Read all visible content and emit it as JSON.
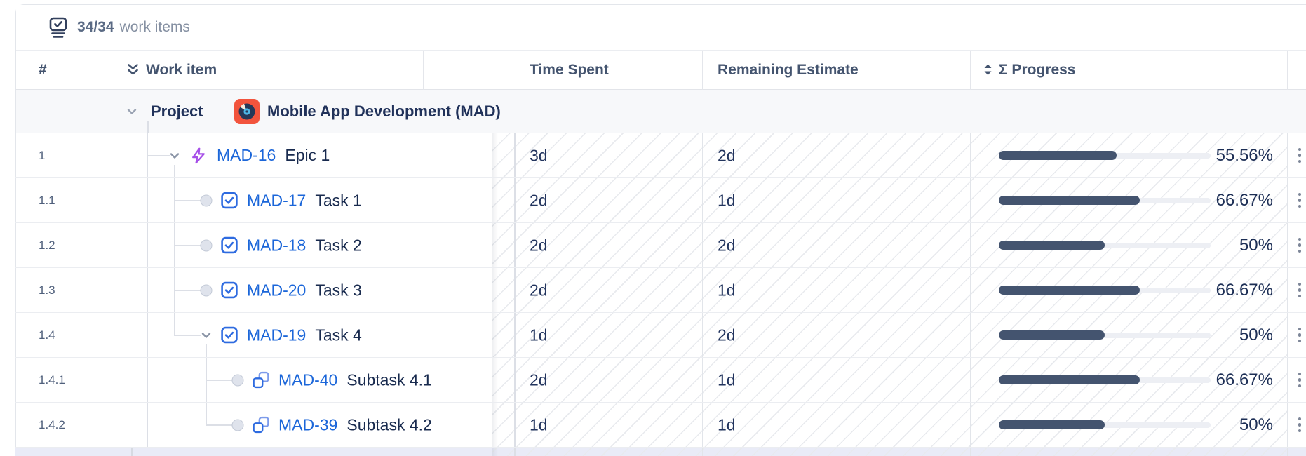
{
  "topbar": {
    "count": "34/34",
    "label": "work items"
  },
  "header": {
    "number": "#",
    "work_item": "Work item",
    "time_spent": "Time Spent",
    "remaining_estimate": "Remaining Estimate",
    "progress": "Σ Progress"
  },
  "project": {
    "label": "Project",
    "name": "Mobile App Development (MAD)"
  },
  "rows": [
    {
      "num": "1",
      "key": "MAD-16",
      "summary": "Epic 1",
      "type": "epic",
      "time": "3d",
      "remaining": "2d",
      "pct": "55.56%",
      "pct_value": 55.56,
      "tree": {
        "level": 1,
        "node": "chevron",
        "corner": false,
        "child_stub": true,
        "ancestors": []
      }
    },
    {
      "num": "1.1",
      "key": "MAD-17",
      "summary": "Task 1",
      "type": "task",
      "time": "2d",
      "remaining": "1d",
      "pct": "66.67%",
      "pct_value": 66.67,
      "tree": {
        "level": 2,
        "node": "dot",
        "corner": false,
        "child_stub": false,
        "ancestors": [
          1
        ]
      }
    },
    {
      "num": "1.2",
      "key": "MAD-18",
      "summary": "Task 2",
      "type": "task",
      "time": "2d",
      "remaining": "2d",
      "pct": "50%",
      "pct_value": 50,
      "tree": {
        "level": 2,
        "node": "dot",
        "corner": false,
        "child_stub": false,
        "ancestors": [
          1
        ]
      }
    },
    {
      "num": "1.3",
      "key": "MAD-20",
      "summary": "Task 3",
      "type": "task",
      "time": "2d",
      "remaining": "1d",
      "pct": "66.67%",
      "pct_value": 66.67,
      "tree": {
        "level": 2,
        "node": "dot",
        "corner": false,
        "child_stub": false,
        "ancestors": [
          1
        ]
      }
    },
    {
      "num": "1.4",
      "key": "MAD-19",
      "summary": "Task 4",
      "type": "task",
      "time": "1d",
      "remaining": "2d",
      "pct": "50%",
      "pct_value": 50,
      "tree": {
        "level": 2,
        "node": "chevron",
        "corner": true,
        "child_stub": true,
        "ancestors": [
          1
        ]
      }
    },
    {
      "num": "1.4.1",
      "key": "MAD-40",
      "summary": "Subtask 4.1",
      "type": "subtask",
      "time": "2d",
      "remaining": "1d",
      "pct": "66.67%",
      "pct_value": 66.67,
      "tree": {
        "level": 3,
        "node": "dot",
        "corner": false,
        "child_stub": false,
        "ancestors": [
          1
        ]
      }
    },
    {
      "num": "1.4.2",
      "key": "MAD-39",
      "summary": "Subtask 4.2",
      "type": "subtask",
      "time": "1d",
      "remaining": "1d",
      "pct": "50%",
      "pct_value": 50,
      "tree": {
        "level": 3,
        "node": "dot",
        "corner": true,
        "child_stub": false,
        "ancestors": [
          1
        ]
      }
    }
  ],
  "icons": {
    "topbar": "work-items-stack-icon",
    "work_item_header": "double-chevron-down-icon",
    "progress_header": "sort-icon",
    "expand": "chevron-down-icon",
    "epic": "epic-icon",
    "task": "task-icon",
    "subtask": "subtask-icon",
    "row_menu": "kebab-menu-icon",
    "project": "project-avatar-record"
  },
  "colors": {
    "link": "#1B66D9",
    "text": "#182A4E",
    "header_text": "#44546F",
    "progress_fill": "#44546F",
    "progress_track": "#EDEFF4",
    "project_row_bg": "#F7F8FA",
    "avatar_bg": "#F2543D",
    "epic_purple": "#A64FE8",
    "task_blue": "#2E6BE0",
    "hatch_line": "#E8EAEE",
    "partial_row_bg": "#E9EBF7"
  }
}
